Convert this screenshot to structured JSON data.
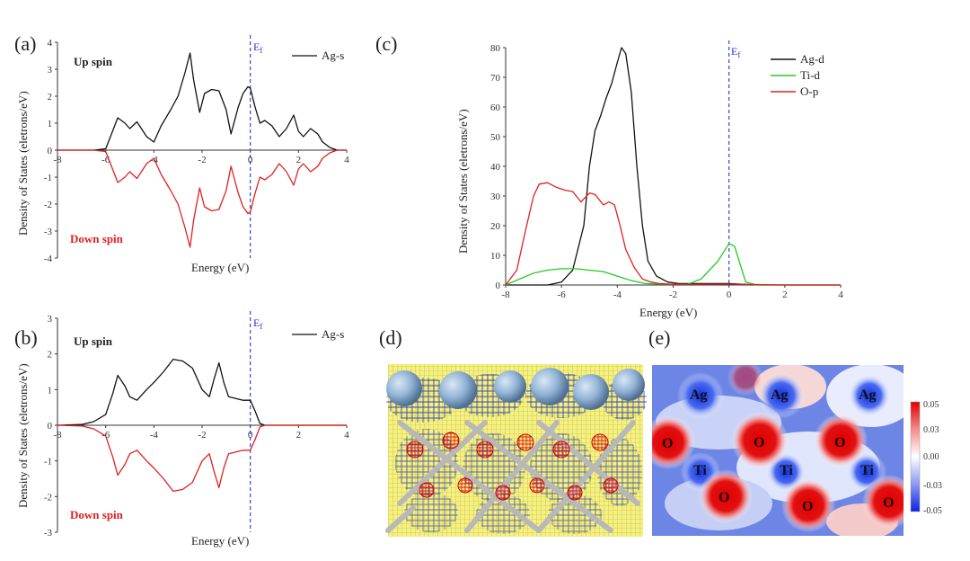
{
  "panels": {
    "a": {
      "tag": "(a)",
      "up_label": "Up spin",
      "down_label": "Down spin",
      "fermi": "Ef",
      "xlabel": "Energy (eV)",
      "ylabel": "Density of States (eletrons/eV)",
      "legend": "Ag-s"
    },
    "b": {
      "tag": "(b)",
      "up_label": "Up spin",
      "down_label": "Down spin",
      "fermi": "Ef",
      "xlabel": "Energy (eV)",
      "ylabel": "Density of States (eletrons/eV)",
      "legend": "Ag-s"
    },
    "c": {
      "tag": "(c)",
      "fermi": "Ef",
      "xlabel": "Energy (eV)",
      "ylabel": "Density of States (eletrons/eV)"
    },
    "d": {
      "tag": "(d)"
    },
    "e": {
      "tag": "(e)",
      "atom_labels": [
        "Ag",
        "Ag",
        "Ag",
        "O",
        "O",
        "O",
        "Ti",
        "Ti",
        "Ti",
        "O",
        "O",
        "O"
      ],
      "colorbar_ticks": [
        "0.05",
        "0.03",
        "0.00",
        "-0.03",
        "-0.05"
      ]
    }
  },
  "chart_data": [
    {
      "type": "line",
      "title": "",
      "xlabel": "Energy (eV)",
      "ylabel": "Density of States (eletrons/eV)",
      "xlim": [
        -8,
        4
      ],
      "ylim": [
        -4,
        4
      ],
      "xticks": [
        -8,
        -6,
        -4,
        -2,
        0,
        2,
        4
      ],
      "yticks": [
        4,
        3,
        2,
        1,
        0,
        -1,
        -2,
        -3,
        -4
      ],
      "fermi_level": 0,
      "legend_position": "top-right",
      "series": [
        {
          "name": "Ag-s",
          "color": "#111111",
          "x": [
            -8,
            -6.5,
            -6,
            -5.8,
            -5.5,
            -5.2,
            -5,
            -4.7,
            -4.3,
            -4,
            -3.7,
            -3.3,
            -3,
            -2.7,
            -2.5,
            -2.35,
            -2.1,
            -1.9,
            -1.6,
            -1.3,
            -1.0,
            -0.8,
            -0.5,
            -0.3,
            -0.1,
            0,
            0.2,
            0.4,
            0.6,
            0.9,
            1.2,
            1.5,
            1.8,
            2.0,
            2.2,
            2.5,
            2.8,
            3.0,
            3.3,
            3.6,
            4
          ],
          "y": [
            0,
            0,
            0.05,
            0.5,
            1.2,
            1.0,
            0.8,
            1.05,
            0.5,
            0.3,
            0.9,
            1.5,
            2.0,
            2.9,
            3.6,
            2.6,
            1.4,
            2.1,
            2.25,
            2.2,
            1.5,
            0.6,
            1.6,
            2.1,
            2.35,
            2.3,
            1.6,
            1.0,
            1.1,
            0.9,
            0.5,
            0.8,
            1.3,
            0.7,
            0.5,
            0.8,
            0.6,
            0.3,
            0.1,
            0.0,
            0
          ]
        },
        {
          "name": "Ag-s (down)",
          "color": "#e02020",
          "x": [
            -8,
            -6.5,
            -6,
            -5.8,
            -5.5,
            -5.2,
            -5,
            -4.7,
            -4.3,
            -4,
            -3.7,
            -3.3,
            -3,
            -2.7,
            -2.5,
            -2.35,
            -2.1,
            -1.9,
            -1.6,
            -1.3,
            -1.0,
            -0.8,
            -0.5,
            -0.3,
            -0.1,
            0,
            0.2,
            0.4,
            0.6,
            0.9,
            1.2,
            1.5,
            1.8,
            2.0,
            2.2,
            2.5,
            2.8,
            3.0,
            3.3,
            3.6,
            4
          ],
          "y": [
            0,
            0,
            -0.05,
            -0.5,
            -1.2,
            -1.0,
            -0.8,
            -1.05,
            -0.5,
            -0.3,
            -0.9,
            -1.5,
            -2.0,
            -2.9,
            -3.6,
            -2.6,
            -1.4,
            -2.1,
            -2.25,
            -2.2,
            -1.5,
            -0.6,
            -1.6,
            -2.1,
            -2.35,
            -2.3,
            -1.6,
            -1.0,
            -1.1,
            -0.9,
            -0.5,
            -0.8,
            -1.3,
            -0.7,
            -0.5,
            -0.8,
            -0.6,
            -0.3,
            -0.1,
            0.0,
            0
          ]
        }
      ]
    },
    {
      "type": "line",
      "title": "",
      "xlabel": "Energy (eV)",
      "ylabel": "Density of States (eletrons/eV)",
      "xlim": [
        -8,
        4
      ],
      "ylim": [
        -3,
        3
      ],
      "xticks": [
        -8,
        -6,
        -4,
        -2,
        0,
        2,
        4
      ],
      "yticks": [
        3,
        2,
        1,
        0,
        -1,
        -2,
        -3
      ],
      "fermi_level": 0,
      "legend_position": "top-right",
      "series": [
        {
          "name": "Ag-s",
          "color": "#111111",
          "x": [
            -8,
            -7,
            -6.5,
            -6,
            -5.7,
            -5.5,
            -5.2,
            -5,
            -4.7,
            -4.3,
            -4,
            -3.6,
            -3.2,
            -2.8,
            -2.4,
            -2.0,
            -1.7,
            -1.5,
            -1.3,
            -1.1,
            -0.9,
            -0.6,
            -0.3,
            0,
            0.2,
            0.4,
            0.6,
            1,
            2,
            4
          ],
          "y": [
            0,
            0.02,
            0.1,
            0.3,
            0.9,
            1.4,
            1.1,
            0.8,
            0.7,
            1.0,
            1.2,
            1.5,
            1.85,
            1.8,
            1.6,
            1.0,
            0.8,
            1.3,
            1.75,
            1.2,
            0.8,
            0.75,
            0.7,
            0.7,
            0.4,
            0.05,
            0,
            0,
            0,
            0
          ]
        },
        {
          "name": "Ag-s (down)",
          "color": "#e02020",
          "x": [
            -8,
            -7,
            -6.5,
            -6,
            -5.7,
            -5.5,
            -5.2,
            -5,
            -4.7,
            -4.3,
            -4,
            -3.6,
            -3.2,
            -2.8,
            -2.4,
            -2.0,
            -1.7,
            -1.5,
            -1.3,
            -1.1,
            -0.9,
            -0.6,
            -0.3,
            0,
            0.2,
            0.4,
            0.6,
            1,
            2,
            4
          ],
          "y": [
            0,
            -0.02,
            -0.1,
            -0.3,
            -0.9,
            -1.4,
            -1.1,
            -0.8,
            -0.7,
            -1.0,
            -1.2,
            -1.5,
            -1.85,
            -1.8,
            -1.6,
            -1.0,
            -0.8,
            -1.3,
            -1.75,
            -1.2,
            -0.8,
            -0.75,
            -0.7,
            -0.7,
            -0.4,
            -0.05,
            0,
            0,
            0,
            0
          ]
        }
      ]
    },
    {
      "type": "line",
      "title": "",
      "xlabel": "Energy (eV)",
      "ylabel": "Density of States (eletrons/eV)",
      "xlim": [
        -8,
        4
      ],
      "ylim": [
        0,
        80
      ],
      "xticks": [
        -8,
        -6,
        -4,
        -2,
        0,
        2,
        4
      ],
      "yticks": [
        0,
        10,
        20,
        30,
        40,
        50,
        60,
        70,
        80
      ],
      "fermi_level": 0,
      "legend_position": "top-right",
      "series": [
        {
          "name": "Ag-d",
          "color": "#111111",
          "x": [
            -8,
            -6.5,
            -6,
            -5.6,
            -5.2,
            -5.0,
            -4.8,
            -4.6,
            -4.4,
            -4.2,
            -4.0,
            -3.85,
            -3.7,
            -3.5,
            -3.3,
            -3.1,
            -2.9,
            -2.6,
            -2.2,
            -1.8,
            -1,
            0,
            1,
            4
          ],
          "y": [
            0,
            0,
            1,
            5,
            20,
            40,
            52,
            57,
            63,
            68,
            75,
            80,
            78,
            65,
            40,
            20,
            8,
            3,
            1,
            0.5,
            0.5,
            0.5,
            0,
            0
          ]
        },
        {
          "name": "Ti-d",
          "color": "#22cc22",
          "x": [
            -8,
            -7.5,
            -7,
            -6.5,
            -6,
            -5.5,
            -5,
            -4.5,
            -4,
            -3.5,
            -3,
            -2.5,
            -2,
            -1.5,
            -1,
            -0.7,
            -0.4,
            -0.2,
            0,
            0.2,
            0.4,
            0.6,
            1,
            4
          ],
          "y": [
            0,
            2,
            4,
            5,
            5.5,
            5.5,
            5,
            4.5,
            3,
            1.5,
            0.5,
            0.3,
            0.2,
            0.2,
            2,
            5,
            8,
            11,
            14,
            13,
            7,
            1,
            0,
            0
          ]
        },
        {
          "name": "O-p",
          "color": "#e02020",
          "x": [
            -8,
            -7.6,
            -7.3,
            -7.0,
            -6.8,
            -6.5,
            -6.2,
            -5.9,
            -5.6,
            -5.3,
            -5.0,
            -4.8,
            -4.5,
            -4.3,
            -4.1,
            -3.9,
            -3.7,
            -3.4,
            -3.1,
            -2.8,
            -2.5,
            -2,
            0,
            2,
            4
          ],
          "y": [
            0,
            5,
            18,
            30,
            34,
            34.5,
            33,
            32,
            31.5,
            28,
            31,
            30.5,
            27,
            28,
            27,
            20,
            12,
            6,
            2,
            1,
            0.5,
            0.2,
            0.3,
            0,
            0
          ]
        }
      ]
    }
  ]
}
